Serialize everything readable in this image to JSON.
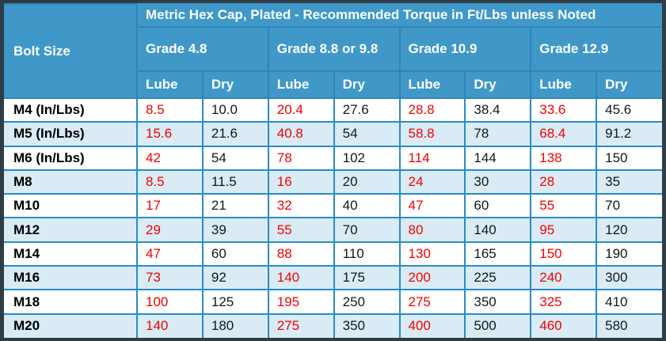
{
  "table": {
    "title": "Metric Hex Cap, Plated - Recommended Torque in Ft/Lbs unless Noted",
    "bolt_size_header": "Bolt Size",
    "grade_headers": [
      "Grade 4.8",
      "Grade 8.8 or 9.8",
      "Grade 10.9",
      "Grade 12.9"
    ],
    "condition_labels": {
      "lube": "Lube",
      "dry": "Dry"
    }
  },
  "chart_data": {
    "type": "table",
    "title": "Metric Hex Cap, Plated - Recommended Torque in Ft/Lbs unless Noted",
    "column_groups": [
      "Grade 4.8",
      "Grade 8.8 or 9.8",
      "Grade 10.9",
      "Grade 12.9"
    ],
    "columns": [
      "Bolt Size",
      "Grade 4.8 Lube",
      "Grade 4.8 Dry",
      "Grade 8.8 or 9.8 Lube",
      "Grade 8.8 or 9.8 Dry",
      "Grade 10.9 Lube",
      "Grade 10.9 Dry",
      "Grade 12.9 Lube",
      "Grade 12.9 Dry"
    ],
    "rows": [
      {
        "bolt_size": "M4 (In/Lbs)",
        "values": [
          "8.5",
          "10.0",
          "20.4",
          "27.6",
          "28.8",
          "38.4",
          "33.6",
          "45.6"
        ]
      },
      {
        "bolt_size": "M5 (In/Lbs)",
        "values": [
          "15.6",
          "21.6",
          "40.8",
          "54",
          "58.8",
          "78",
          "68.4",
          "91.2"
        ]
      },
      {
        "bolt_size": "M6 (In/Lbs)",
        "values": [
          "42",
          "54",
          "78",
          "102",
          "114",
          "144",
          "138",
          "150"
        ]
      },
      {
        "bolt_size": "M8",
        "values": [
          "8.5",
          "11.5",
          "16",
          "20",
          "24",
          "30",
          "28",
          "35"
        ]
      },
      {
        "bolt_size": "M10",
        "values": [
          "17",
          "21",
          "32",
          "40",
          "47",
          "60",
          "55",
          "70"
        ]
      },
      {
        "bolt_size": "M12",
        "values": [
          "29",
          "39",
          "55",
          "70",
          "80",
          "140",
          "95",
          "120"
        ]
      },
      {
        "bolt_size": "M14",
        "values": [
          "47",
          "60",
          "88",
          "110",
          "130",
          "165",
          "150",
          "190"
        ]
      },
      {
        "bolt_size": "M16",
        "values": [
          "73",
          "92",
          "140",
          "175",
          "200",
          "225",
          "240",
          "300"
        ]
      },
      {
        "bolt_size": "M18",
        "values": [
          "100",
          "125",
          "195",
          "250",
          "275",
          "350",
          "325",
          "410"
        ]
      },
      {
        "bolt_size": "M20",
        "values": [
          "140",
          "180",
          "275",
          "350",
          "400",
          "500",
          "460",
          "580"
        ]
      }
    ],
    "legend_note": "Lube values rendered in red, Dry values in black"
  },
  "colors": {
    "header_blue": "#3f98c8",
    "frame_dark": "#2e3d45",
    "grid_blue": "#2a8cc6",
    "header_border": "#2f86b6",
    "row_alt_blue": "#d9ecf5",
    "row_white": "#ffffff",
    "lube_red": "#f40000",
    "dry_black": "#161616",
    "header_text": "#ffffff"
  }
}
